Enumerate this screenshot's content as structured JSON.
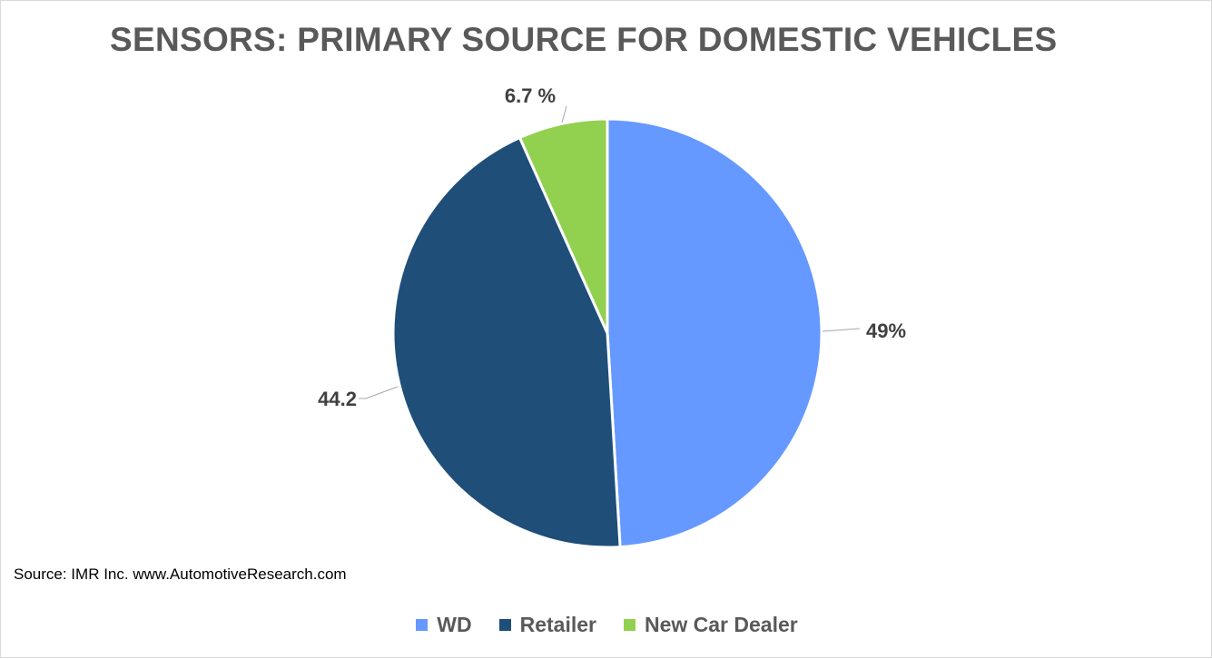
{
  "chart_data": {
    "type": "pie",
    "title": "SENSORS: PRIMARY SOURCE FOR DOMESTIC VEHICLES",
    "categories": [
      "WD",
      "Retailer",
      "New Car Dealer"
    ],
    "values": [
      49,
      44.2,
      6.7
    ],
    "data_labels": [
      "49%",
      "44.2",
      "6.7 %"
    ],
    "colors": [
      "#6699ff",
      "#1f4e79",
      "#92d050"
    ],
    "legend_position": "bottom",
    "slice_order": "clockwise from top"
  },
  "source_note": "Source: IMR Inc. www.AutomotiveResearch.com"
}
